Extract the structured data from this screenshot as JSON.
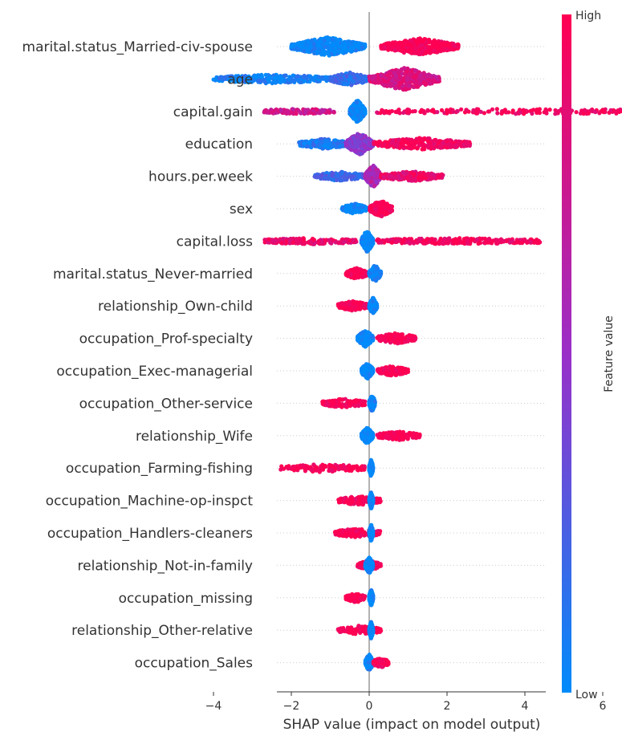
{
  "chart_data": {
    "type": "scatter",
    "subtype": "shap-beeswarm",
    "xlabel": "SHAP value (impact on model output)",
    "xlim": [
      -4.5,
      9.0
    ],
    "xticks": [
      -4,
      -2,
      0,
      2,
      4,
      6,
      8
    ],
    "colorbar": {
      "label": "Feature value",
      "high": "High",
      "low": "Low",
      "low_color": "#008bfb",
      "high_color": "#ff0052"
    },
    "grid": false,
    "features": [
      {
        "name": "marital.status_Married-civ-spouse",
        "clusters": [
          {
            "x": [
              -2.0,
              -0.1
            ],
            "c": 0.0,
            "n": 520,
            "spread": 0.8
          },
          {
            "x": [
              0.3,
              2.3
            ],
            "c": 1.0,
            "n": 420,
            "spread": 0.7
          }
        ]
      },
      {
        "name": "age",
        "clusters": [
          {
            "x": [
              -4.0,
              -1.0
            ],
            "c": 0.05,
            "n": 260,
            "spread": 0.3
          },
          {
            "x": [
              -1.0,
              0.0
            ],
            "c": 0.15,
            "n": 200,
            "spread": 0.5
          },
          {
            "x": [
              0.0,
              1.8
            ],
            "c": 0.8,
            "n": 440,
            "spread": 1.0
          }
        ]
      },
      {
        "name": "capital.gain",
        "clusters": [
          {
            "x": [
              -2.7,
              -0.9
            ],
            "c": 0.75,
            "n": 140,
            "spread": 0.1
          },
          {
            "x": [
              -0.5,
              -0.1
            ],
            "c": 0.0,
            "n": 300,
            "spread": 1.0
          },
          {
            "x": [
              0.2,
              8.4
            ],
            "c": 0.95,
            "n": 260,
            "spread": 0.1
          }
        ]
      },
      {
        "name": "education",
        "clusters": [
          {
            "x": [
              -1.8,
              -0.5
            ],
            "c": 0.1,
            "n": 240,
            "spread": 0.35
          },
          {
            "x": [
              -0.6,
              0.1
            ],
            "c": 0.45,
            "n": 300,
            "spread": 1.0
          },
          {
            "x": [
              0.1,
              2.6
            ],
            "c": 0.95,
            "n": 300,
            "spread": 0.45
          }
        ]
      },
      {
        "name": "hours.per.week",
        "clusters": [
          {
            "x": [
              -1.4,
              -0.1
            ],
            "c": 0.2,
            "n": 180,
            "spread": 0.3
          },
          {
            "x": [
              -0.1,
              0.3
            ],
            "c": 0.6,
            "n": 280,
            "spread": 1.0
          },
          {
            "x": [
              0.3,
              1.9
            ],
            "c": 0.9,
            "n": 220,
            "spread": 0.35
          }
        ]
      },
      {
        "name": "sex",
        "clusters": [
          {
            "x": [
              -0.7,
              -0.05
            ],
            "c": 0.0,
            "n": 160,
            "spread": 0.35
          },
          {
            "x": [
              0.0,
              0.6
            ],
            "c": 1.0,
            "n": 200,
            "spread": 0.7
          }
        ]
      },
      {
        "name": "capital.loss",
        "clusters": [
          {
            "x": [
              -2.7,
              -0.3
            ],
            "c": 0.9,
            "n": 200,
            "spread": 0.15
          },
          {
            "x": [
              -0.2,
              0.1
            ],
            "c": 0.0,
            "n": 180,
            "spread": 1.0
          },
          {
            "x": [
              0.2,
              4.4
            ],
            "c": 0.95,
            "n": 260,
            "spread": 0.15
          }
        ]
      },
      {
        "name": "marital.status_Never-married",
        "clusters": [
          {
            "x": [
              -0.6,
              -0.05
            ],
            "c": 1.0,
            "n": 140,
            "spread": 0.4
          },
          {
            "x": [
              0.0,
              0.3
            ],
            "c": 0.0,
            "n": 180,
            "spread": 0.7
          }
        ]
      },
      {
        "name": "relationship_Own-child",
        "clusters": [
          {
            "x": [
              -0.8,
              -0.05
            ],
            "c": 1.0,
            "n": 140,
            "spread": 0.35
          },
          {
            "x": [
              0.0,
              0.2
            ],
            "c": 0.0,
            "n": 180,
            "spread": 0.7
          }
        ]
      },
      {
        "name": "occupation_Prof-specialty",
        "clusters": [
          {
            "x": [
              -0.3,
              0.1
            ],
            "c": 0.0,
            "n": 180,
            "spread": 0.7
          },
          {
            "x": [
              0.2,
              1.2
            ],
            "c": 1.0,
            "n": 160,
            "spread": 0.4
          }
        ]
      },
      {
        "name": "occupation_Exec-managerial",
        "clusters": [
          {
            "x": [
              -0.2,
              0.1
            ],
            "c": 0.0,
            "n": 180,
            "spread": 0.7
          },
          {
            "x": [
              0.2,
              1.0
            ],
            "c": 1.0,
            "n": 140,
            "spread": 0.35
          }
        ]
      },
      {
        "name": "occupation_Other-service",
        "clusters": [
          {
            "x": [
              -1.2,
              -0.1
            ],
            "c": 1.0,
            "n": 140,
            "spread": 0.3
          },
          {
            "x": [
              0.0,
              0.15
            ],
            "c": 0.0,
            "n": 180,
            "spread": 0.7
          }
        ]
      },
      {
        "name": "relationship_Wife",
        "clusters": [
          {
            "x": [
              -0.2,
              0.1
            ],
            "c": 0.0,
            "n": 180,
            "spread": 0.7
          },
          {
            "x": [
              0.2,
              1.3
            ],
            "c": 1.0,
            "n": 140,
            "spread": 0.3
          }
        ]
      },
      {
        "name": "occupation_Farming-fishing",
        "clusters": [
          {
            "x": [
              -2.3,
              -0.1
            ],
            "c": 1.0,
            "n": 140,
            "spread": 0.25
          },
          {
            "x": [
              0.0,
              0.1
            ],
            "c": 0.0,
            "n": 160,
            "spread": 0.7
          }
        ]
      },
      {
        "name": "occupation_Machine-op-inspct",
        "clusters": [
          {
            "x": [
              -0.8,
              0.3
            ],
            "c": 1.0,
            "n": 120,
            "spread": 0.3
          },
          {
            "x": [
              0.0,
              0.1
            ],
            "c": 0.0,
            "n": 180,
            "spread": 0.7
          }
        ]
      },
      {
        "name": "occupation_Handlers-cleaners",
        "clusters": [
          {
            "x": [
              -0.9,
              0.3
            ],
            "c": 1.0,
            "n": 120,
            "spread": 0.3
          },
          {
            "x": [
              0.0,
              0.1
            ],
            "c": 0.0,
            "n": 180,
            "spread": 0.7
          }
        ]
      },
      {
        "name": "relationship_Not-in-family",
        "clusters": [
          {
            "x": [
              -0.3,
              0.3
            ],
            "c": 1.0,
            "n": 120,
            "spread": 0.35
          },
          {
            "x": [
              -0.1,
              0.1
            ],
            "c": 0.0,
            "n": 180,
            "spread": 0.7
          }
        ]
      },
      {
        "name": "occupation_missing",
        "clusters": [
          {
            "x": [
              -0.6,
              -0.1
            ],
            "c": 1.0,
            "n": 110,
            "spread": 0.3
          },
          {
            "x": [
              0.0,
              0.1
            ],
            "c": 0.0,
            "n": 180,
            "spread": 0.7
          }
        ]
      },
      {
        "name": "relationship_Other-relative",
        "clusters": [
          {
            "x": [
              -0.8,
              0.3
            ],
            "c": 1.0,
            "n": 120,
            "spread": 0.3
          },
          {
            "x": [
              0.0,
              0.1
            ],
            "c": 0.0,
            "n": 180,
            "spread": 0.7
          }
        ]
      },
      {
        "name": "occupation_Sales",
        "clusters": [
          {
            "x": [
              -0.1,
              0.1
            ],
            "c": 0.0,
            "n": 180,
            "spread": 0.7
          },
          {
            "x": [
              0.1,
              0.5
            ],
            "c": 1.0,
            "n": 110,
            "spread": 0.35
          }
        ]
      }
    ]
  }
}
